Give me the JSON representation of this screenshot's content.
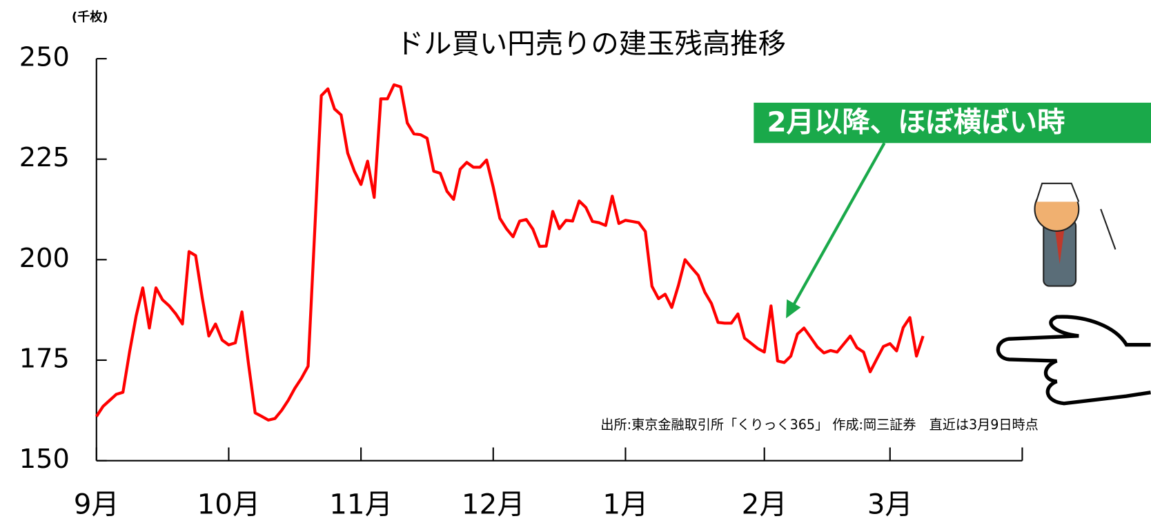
{
  "chart_data": {
    "type": "line",
    "title": "ドル買い円売りの建玉残高推移",
    "y_unit": "(千枚)",
    "source": "出所:東京金融取引所「くりっく365」 作成:岡三証券　直近は3月9日時点",
    "callout": "2月以降、ほぼ横ばい時",
    "categories": [
      "9月",
      null,
      null,
      null,
      null,
      null,
      null,
      null,
      null,
      null,
      null,
      null,
      null,
      null,
      null,
      null,
      null,
      null,
      null,
      null,
      "10月",
      null,
      null,
      null,
      null,
      null,
      null,
      null,
      null,
      null,
      null,
      null,
      null,
      null,
      null,
      null,
      null,
      null,
      null,
      null,
      "11月",
      null,
      null,
      null,
      null,
      null,
      null,
      null,
      null,
      null,
      null,
      null,
      null,
      null,
      null,
      null,
      null,
      null,
      null,
      null,
      "12月",
      null,
      null,
      null,
      null,
      null,
      null,
      null,
      null,
      null,
      null,
      null,
      null,
      null,
      null,
      null,
      null,
      null,
      null,
      null,
      "1月",
      null,
      null,
      null,
      null,
      null,
      null,
      null,
      null,
      null,
      null,
      null,
      null,
      null,
      null,
      null,
      null,
      null,
      null,
      null,
      null,
      "2月",
      null,
      null,
      null,
      null,
      null,
      null,
      null,
      null,
      null,
      null,
      null,
      null,
      null,
      null,
      null,
      null,
      null,
      null,
      "3月",
      null,
      null,
      null,
      null,
      null,
      null,
      null,
      null,
      null,
      null,
      null,
      null,
      null,
      null,
      null,
      null,
      null,
      null,
      null,
      null
    ],
    "series": [
      {
        "color": "#ff0000",
        "values": [
          161,
          163.5,
          165,
          166.5,
          167,
          177,
          186,
          193,
          183,
          193,
          190,
          188.5,
          186.5,
          184,
          202,
          201,
          190.5,
          181,
          184,
          180,
          178.8,
          179.3,
          187,
          174,
          161.9,
          161,
          160.1,
          160.5,
          162.5,
          165,
          168,
          170.5,
          173.5,
          207,
          240.8,
          242.5,
          237.5,
          236,
          226.5,
          222,
          218.7,
          224.5,
          215.5,
          240,
          240,
          243.5,
          243,
          234,
          231.3,
          231.1,
          230.2,
          222,
          221.5,
          217,
          215,
          222.5,
          224.2,
          223,
          223,
          224.8,
          218,
          210.3,
          207.7,
          205.7,
          209.6,
          210,
          207.6,
          203.3,
          203.4,
          212,
          207.7,
          209.8,
          209.6,
          214.6,
          213,
          209.5,
          209.2,
          208.5,
          215.8,
          209,
          209.8,
          209.5,
          209.2,
          207,
          193.4,
          190.3,
          191.4,
          188.1,
          193.6,
          200,
          198,
          196.1,
          191.9,
          189.1,
          184.4,
          184.2,
          184.2,
          186.5,
          180.5,
          179.2,
          177.9,
          177,
          188.5,
          174.8,
          174.4,
          176,
          181.5,
          183,
          180.7,
          178.3,
          176.8,
          177.4,
          177,
          179,
          181,
          178.1,
          177,
          172.1,
          175.3,
          178.4,
          179.1,
          177.3,
          183.1,
          185.6,
          176,
          181,
          null,
          null,
          null,
          null,
          null,
          null,
          null,
          null,
          null,
          null,
          null,
          null,
          null,
          null,
          null
        ]
      }
    ],
    "ylim": [
      150,
      250
    ],
    "yticks": [
      150,
      175,
      200,
      225,
      250
    ]
  }
}
